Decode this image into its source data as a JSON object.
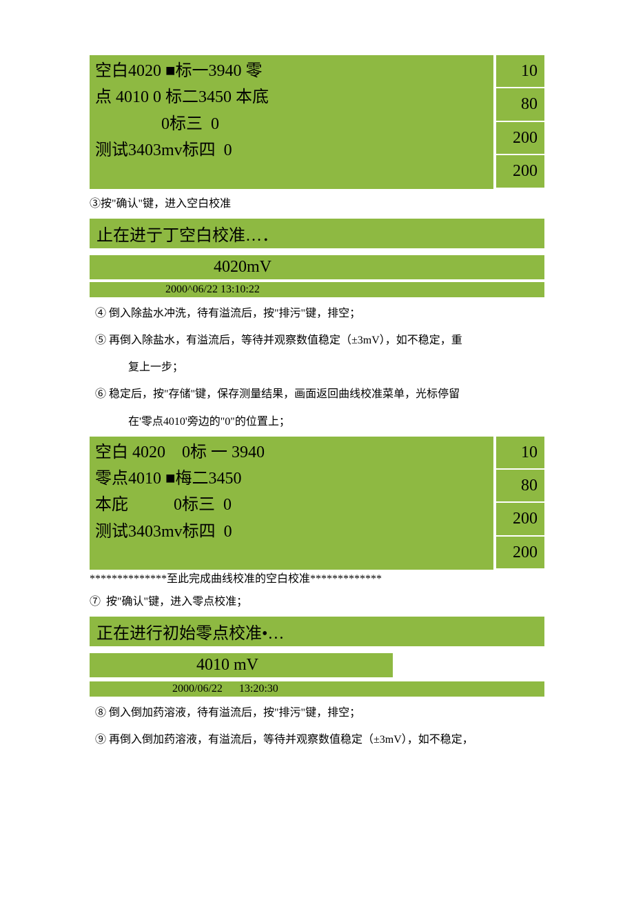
{
  "colors": {
    "block_bg": "#8eb942",
    "text": "#000000",
    "page_bg": "#ffffff"
  },
  "fonts": {
    "display_size": 24,
    "body_size": 16
  },
  "block1": {
    "main_lines": [
      "空白4020 ■标一3940 零",
      "点 4010 0 标二3450 本底",
      "                0标三  0",
      "测试3403mv标四  0"
    ],
    "side_values": [
      "10",
      "80",
      "200",
      "200"
    ]
  },
  "step3": "③按\"确认\"键，进入空白校准",
  "status1": "止在进亍丁空白校准…．",
  "mv1": "4020mV",
  "time1": "2000^06/22 13:10:22",
  "step4": "④ 倒入除盐水冲洗，待有溢流后，按\"排污\"键，排空；",
  "step5a": "⑤ 再倒入除盐水，有溢流后，等待并观察数值稳定（±3mV），如不稳定，重",
  "step5b": "复上一步；",
  "step6a": "⑥ 稳定后，按\"存储\"键，保存测量结果，画面返回曲线校准菜单，光标停留",
  "step6b": "在'零点4010'旁边的\"0\"的位置上；",
  "block2": {
    "main_lines": [
      "空白 4020    0标 一 3940",
      "零点4010 ■梅二3450",
      "本庇           0标三  0",
      "测试3403mv标四  0"
    ],
    "side_values": [
      "10",
      "80",
      "200",
      "200"
    ]
  },
  "separator": "**************至此完成曲线校准的空白校准*************",
  "step7": "⑦  按\"确认\"键，进入零点校准；",
  "status2": "正在进行初始零点校准•…",
  "mv2": "4010 mV",
  "time2": "2000/06/22      13:20:30",
  "step8": "⑧ 倒入倒加药溶液，待有溢流后，按\"排污\"键，排空；",
  "step9": "⑨ 再倒入倒加药溶液，有溢流后，等待并观察数值稳定（±3mV），如不稳定，"
}
